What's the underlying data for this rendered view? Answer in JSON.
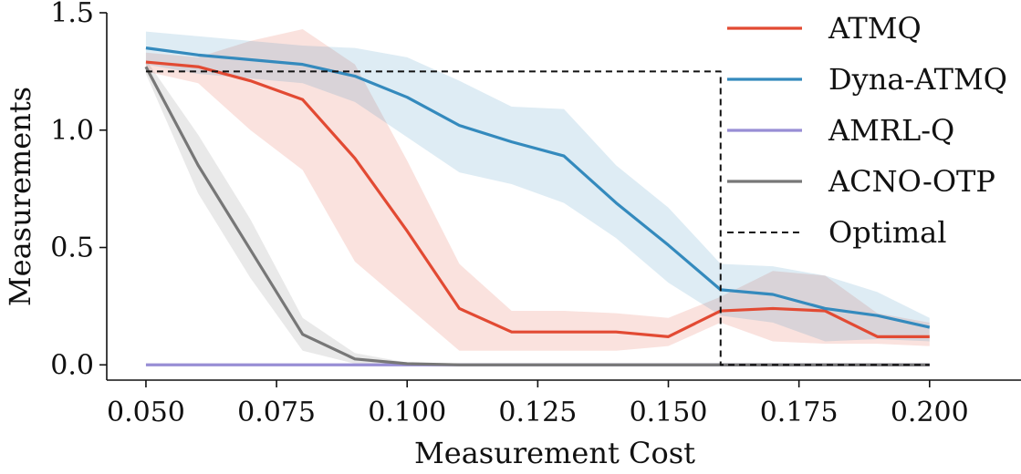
{
  "chart_data": {
    "type": "line",
    "title": "",
    "xlabel": "Measurement Cost",
    "ylabel": "Measurements",
    "xlim": [
      0.0425,
      0.2175
    ],
    "ylim": [
      -0.065,
      1.5
    ],
    "xticks": [
      0.05,
      0.075,
      0.1,
      0.125,
      0.15,
      0.175,
      0.2
    ],
    "xtick_labels": [
      "0.050",
      "0.075",
      "0.100",
      "0.125",
      "0.150",
      "0.175",
      "0.200"
    ],
    "yticks": [
      0.0,
      0.5,
      1.0,
      1.5
    ],
    "ytick_labels": [
      "0.0",
      "0.5",
      "1.0",
      "1.5"
    ],
    "grid": false,
    "legend_position": "top-right",
    "x": [
      0.05,
      0.06,
      0.07,
      0.08,
      0.09,
      0.1,
      0.11,
      0.12,
      0.13,
      0.14,
      0.15,
      0.16,
      0.17,
      0.18,
      0.19,
      0.2
    ],
    "series": [
      {
        "name": "ATMQ",
        "color": "#e24a33",
        "style": "solid",
        "values": [
          1.29,
          1.27,
          1.21,
          1.13,
          0.88,
          0.57,
          0.24,
          0.14,
          0.14,
          0.14,
          0.12,
          0.23,
          0.24,
          0.23,
          0.12,
          0.12
        ],
        "band_upper": [
          1.33,
          1.31,
          1.38,
          1.43,
          1.28,
          0.87,
          0.43,
          0.23,
          0.23,
          0.22,
          0.2,
          0.29,
          0.4,
          0.38,
          0.22,
          0.18
        ],
        "band_lower": [
          1.25,
          1.2,
          1.0,
          0.83,
          0.44,
          0.25,
          0.06,
          0.06,
          0.06,
          0.06,
          0.08,
          0.18,
          0.1,
          0.09,
          0.09,
          0.08
        ]
      },
      {
        "name": "Dyna-ATMQ",
        "color": "#348abd",
        "style": "solid",
        "values": [
          1.35,
          1.32,
          1.3,
          1.28,
          1.23,
          1.14,
          1.02,
          0.95,
          0.89,
          0.69,
          0.51,
          0.32,
          0.3,
          0.24,
          0.21,
          0.16
        ],
        "band_upper": [
          1.42,
          1.4,
          1.38,
          1.36,
          1.35,
          1.31,
          1.21,
          1.1,
          1.09,
          0.85,
          0.67,
          0.43,
          0.42,
          0.38,
          0.31,
          0.2
        ],
        "band_lower": [
          1.28,
          1.24,
          1.22,
          1.2,
          1.12,
          0.97,
          0.82,
          0.77,
          0.69,
          0.54,
          0.35,
          0.21,
          0.18,
          0.1,
          0.11,
          0.1
        ]
      },
      {
        "name": "AMRL-Q",
        "color": "#988ed5",
        "style": "solid",
        "values": [
          0,
          0,
          0,
          0,
          0,
          0,
          0,
          0,
          0,
          0,
          0,
          0,
          0,
          0,
          0,
          0
        ]
      },
      {
        "name": "ACNO-OTP",
        "color": "#777777",
        "style": "solid",
        "values": [
          1.27,
          0.85,
          0.49,
          0.13,
          0.025,
          0.005,
          0,
          0,
          0,
          0,
          0,
          0,
          0,
          0,
          0,
          0
        ],
        "band_upper": [
          1.3,
          0.98,
          0.62,
          0.2,
          0.05,
          0.01,
          0,
          0,
          0,
          0,
          0,
          0,
          0,
          0,
          0,
          0
        ],
        "band_lower": [
          1.24,
          0.73,
          0.37,
          0.06,
          0.005,
          0,
          0,
          0,
          0,
          0,
          0,
          0,
          0,
          0,
          0,
          0
        ]
      },
      {
        "name": "Optimal",
        "color": "#111111",
        "style": "dashed",
        "points": [
          [
            0.05,
            1.25
          ],
          [
            0.16,
            1.25
          ],
          [
            0.16,
            0.0
          ],
          [
            0.2,
            0.0
          ]
        ]
      }
    ]
  }
}
